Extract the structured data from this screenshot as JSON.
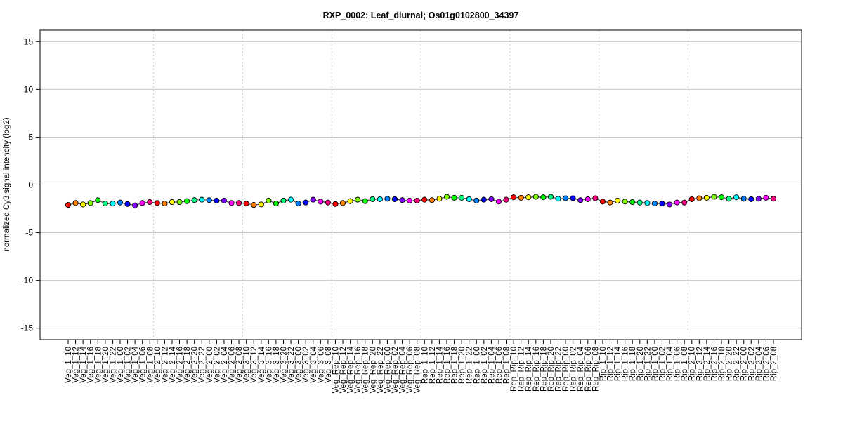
{
  "chart_data": {
    "type": "line",
    "title": "RXP_0002: Leaf_diurnal; Os01g0102800_34397",
    "xlabel": "",
    "ylabel": "normalized Cy3 signal intencity (log2)",
    "ylim": [
      -16.2,
      16.2
    ],
    "yticks": [
      -15,
      -10,
      -5,
      0,
      5,
      10,
      15
    ],
    "grid": true,
    "groups": [
      "Veg_1",
      "Veg_2",
      "Veg_3",
      "Veg_Rep",
      "Rep_1",
      "Rep_Rip",
      "Rip_1",
      "Rip_2"
    ],
    "times": [
      "10",
      "12",
      "14",
      "16",
      "18",
      "20",
      "22",
      "00",
      "02",
      "04",
      "06",
      "08"
    ],
    "colors": [
      "#FF0000",
      "#FF8000",
      "#FFFF00",
      "#80FF00",
      "#00FF00",
      "#00FF80",
      "#00FFFF",
      "#0080FF",
      "#0000FF",
      "#8000FF",
      "#FF00FF",
      "#FF0080"
    ],
    "series": [
      {
        "name": "Veg_1",
        "values": [
          -2.1,
          -1.9,
          -2.05,
          -1.9,
          -1.6,
          -1.95,
          -1.95,
          -1.85,
          -2.0,
          -2.15,
          -1.9,
          -1.8
        ]
      },
      {
        "name": "Veg_2",
        "values": [
          -1.9,
          -1.95,
          -1.8,
          -1.8,
          -1.7,
          -1.6,
          -1.55,
          -1.6,
          -1.65,
          -1.65,
          -1.9,
          -1.9
        ]
      },
      {
        "name": "Veg_3",
        "values": [
          -1.95,
          -2.1,
          -2.05,
          -1.65,
          -1.95,
          -1.65,
          -1.55,
          -1.95,
          -1.85,
          -1.55,
          -1.75,
          -1.85
        ]
      },
      {
        "name": "Veg_Rep",
        "values": [
          -2.0,
          -1.9,
          -1.7,
          -1.55,
          -1.7,
          -1.5,
          -1.5,
          -1.45,
          -1.5,
          -1.6,
          -1.65,
          -1.65
        ]
      },
      {
        "name": "Rep_1",
        "values": [
          -1.55,
          -1.6,
          -1.45,
          -1.25,
          -1.35,
          -1.35,
          -1.5,
          -1.65,
          -1.55,
          -1.5,
          -1.75,
          -1.55
        ]
      },
      {
        "name": "Rep_Rip",
        "values": [
          -1.3,
          -1.35,
          -1.3,
          -1.25,
          -1.3,
          -1.25,
          -1.45,
          -1.4,
          -1.4,
          -1.6,
          -1.5,
          -1.4
        ]
      },
      {
        "name": "Rip_1",
        "values": [
          -1.75,
          -1.85,
          -1.65,
          -1.75,
          -1.8,
          -1.85,
          -1.9,
          -1.95,
          -1.95,
          -2.05,
          -1.85,
          -1.85
        ]
      },
      {
        "name": "Rip_2",
        "values": [
          -1.5,
          -1.4,
          -1.35,
          -1.25,
          -1.3,
          -1.45,
          -1.3,
          -1.45,
          -1.5,
          -1.45,
          -1.35,
          -1.45
        ]
      }
    ]
  }
}
